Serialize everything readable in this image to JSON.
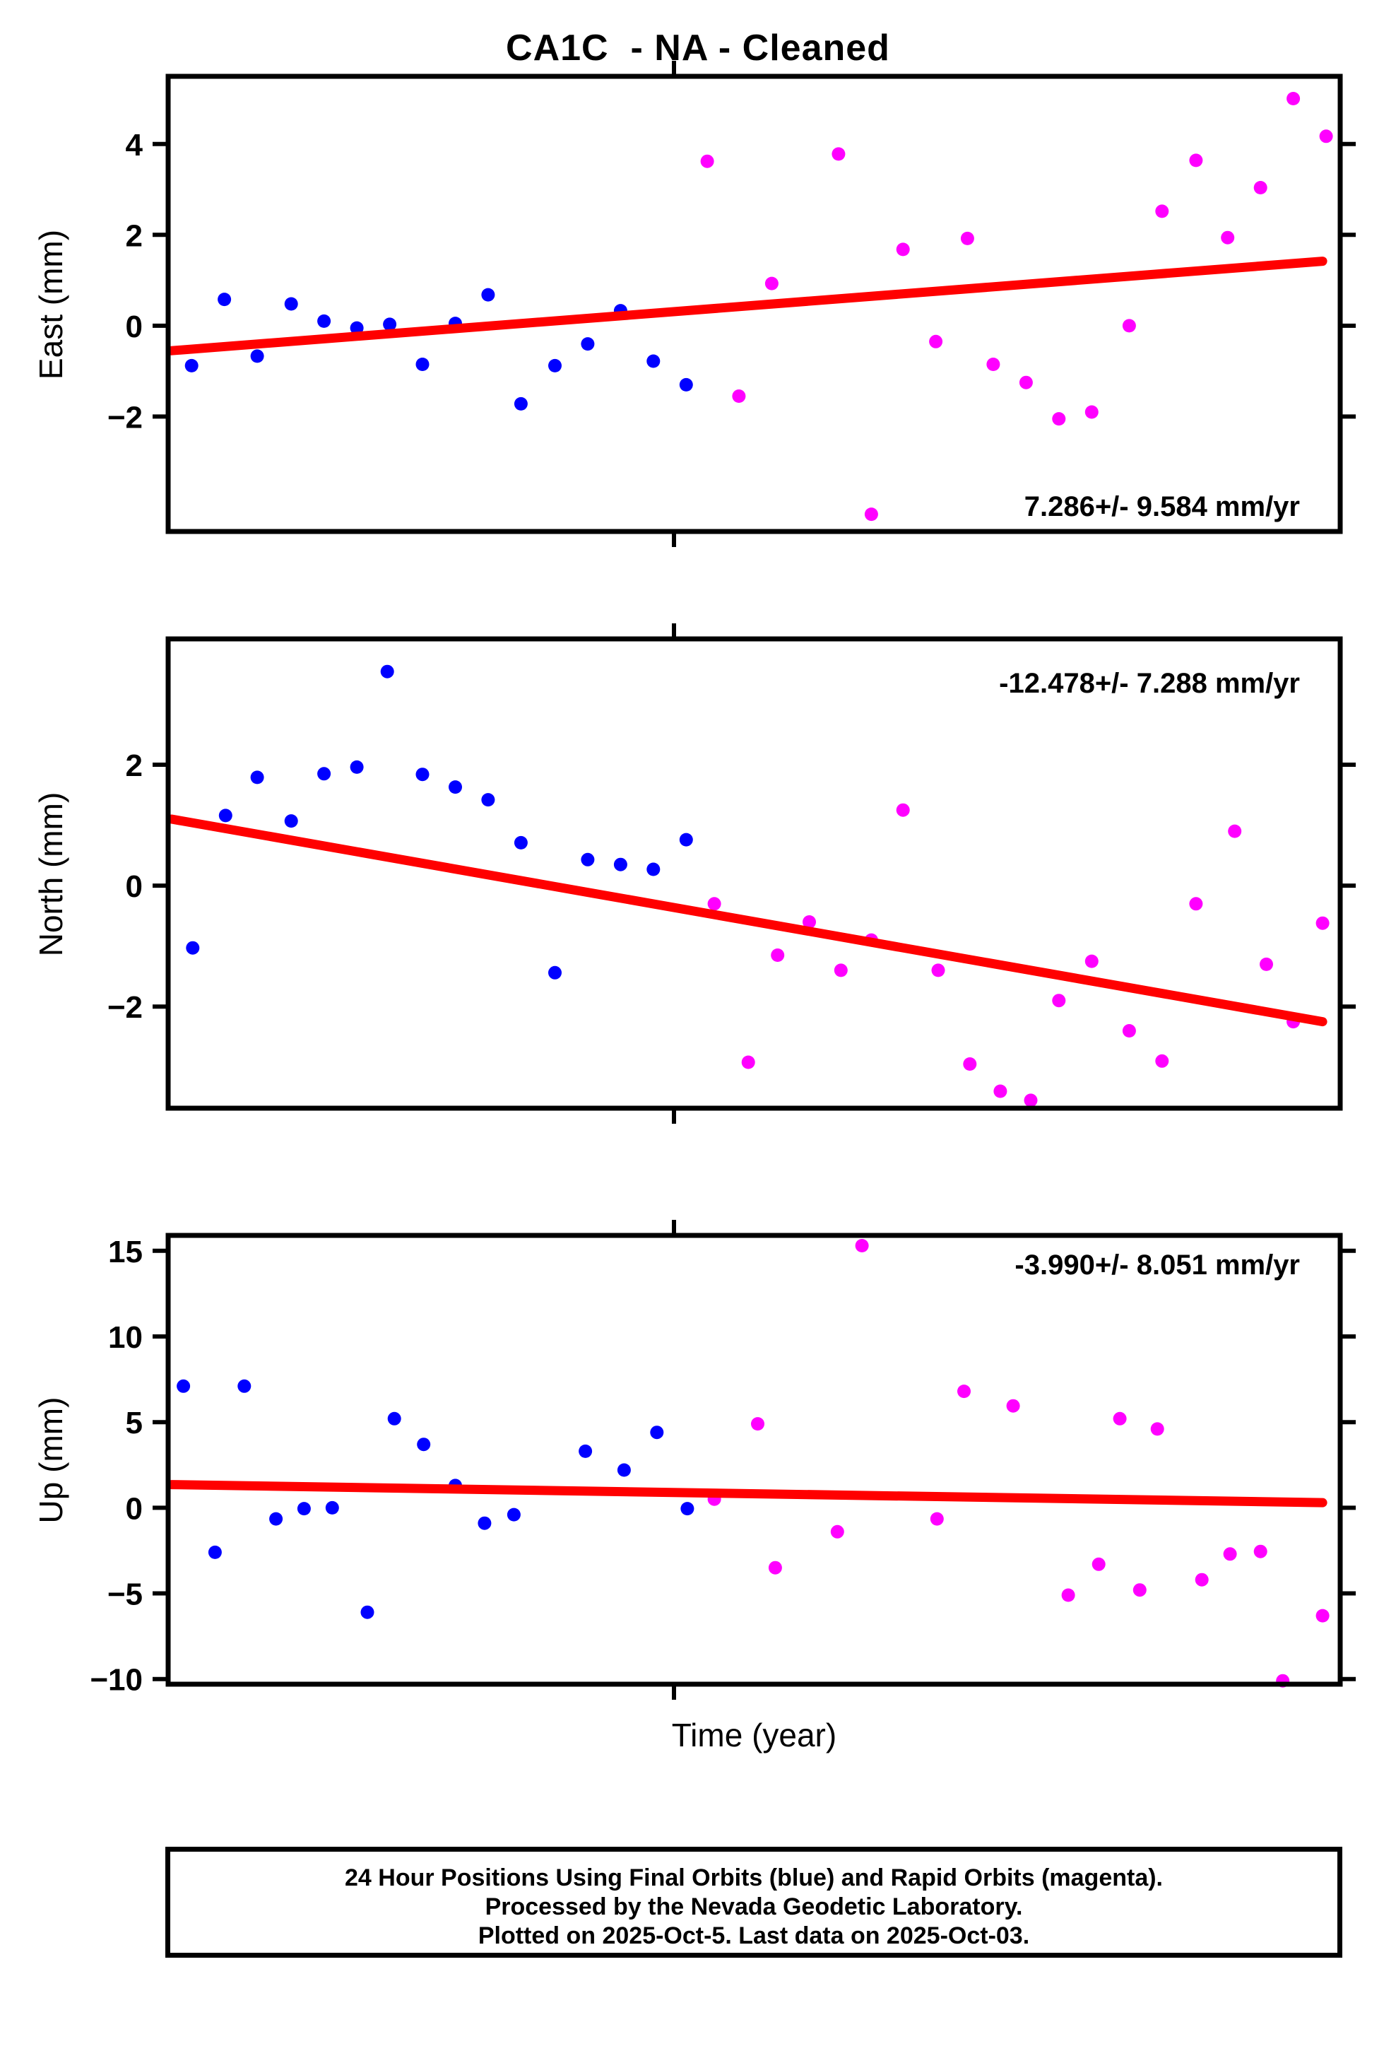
{
  "title": "CA1C  - NA - Cleaned",
  "xlabel": "Time (year)",
  "colors": {
    "final_blue": "#0000ff",
    "rapid_magenta": "#ff00ff",
    "trend_red": "#ff0000",
    "axis_black": "#000000"
  },
  "footer": {
    "lines": [
      "24 Hour Positions Using Final Orbits (blue) and Rapid Orbits (magenta).",
      "Processed by the Nevada Geodetic Laboratory.",
      "Plotted on 2025-Oct-5. Last data on 2025-Oct-03."
    ]
  },
  "chart_data": [
    {
      "name": "east",
      "type": "scatter",
      "ylabel": "East (mm)",
      "rate_label": "7.286+/- 9.584 mm/yr",
      "rate_label_position": "bottom-right",
      "ylim": [
        -4.53,
        5.49
      ],
      "yticks": [
        {
          "value": 4,
          "label": "4"
        },
        {
          "value": 2,
          "label": "2"
        },
        {
          "value": 0,
          "label": "0"
        },
        {
          "value": -2,
          "label": "−2"
        }
      ],
      "xtick_fractions": [
        0.4316
      ],
      "x_axis_note": "x values are fractional positions along the unlabeled time axis",
      "series": [
        {
          "name": "final-orbits",
          "color_key": "final_blue",
          "points": [
            [
              0.02,
              -0.88
            ],
            [
              0.048,
              0.58
            ],
            [
              0.076,
              -0.67
            ],
            [
              0.105,
              0.48
            ],
            [
              0.133,
              0.1
            ],
            [
              0.161,
              -0.05
            ],
            [
              0.189,
              0.03
            ],
            [
              0.217,
              -0.85
            ],
            [
              0.245,
              0.05
            ],
            [
              0.273,
              0.68
            ],
            [
              0.301,
              -1.72
            ],
            [
              0.33,
              -0.88
            ],
            [
              0.358,
              -0.4
            ],
            [
              0.386,
              0.33
            ],
            [
              0.414,
              -0.78
            ],
            [
              0.442,
              -1.3
            ]
          ]
        },
        {
          "name": "rapid-orbits",
          "color_key": "rapid_magenta",
          "points": [
            [
              0.46,
              3.62
            ],
            [
              0.487,
              -1.55
            ],
            [
              0.515,
              0.93
            ],
            [
              0.572,
              3.78
            ],
            [
              0.6,
              -4.15
            ],
            [
              0.627,
              1.68
            ],
            [
              0.655,
              -0.35
            ],
            [
              0.682,
              1.92
            ],
            [
              0.704,
              -0.85
            ],
            [
              0.732,
              -1.25
            ],
            [
              0.76,
              -2.05
            ],
            [
              0.788,
              -1.9
            ],
            [
              0.82,
              0.0
            ],
            [
              0.848,
              2.52
            ],
            [
              0.877,
              3.64
            ],
            [
              0.904,
              1.94
            ],
            [
              0.932,
              3.04
            ],
            [
              0.96,
              5.0
            ],
            [
              0.988,
              4.17
            ]
          ]
        }
      ],
      "trend": {
        "rate_mm_yr": 7.286,
        "x": [
          0.003,
          0.985
        ],
        "y": [
          -0.55,
          1.42
        ]
      }
    },
    {
      "name": "north",
      "type": "scatter",
      "ylabel": "North (mm)",
      "rate_label": "-12.478+/- 7.288 mm/yr",
      "rate_label_position": "top-right",
      "ylim": [
        -3.68,
        4.08
      ],
      "yticks": [
        {
          "value": 2,
          "label": "2"
        },
        {
          "value": 0,
          "label": "0"
        },
        {
          "value": -2,
          "label": "−2"
        }
      ],
      "xtick_fractions": [
        0.4316
      ],
      "x_axis_note": "x values are fractional positions along the unlabeled time axis",
      "series": [
        {
          "name": "final-orbits",
          "color_key": "final_blue",
          "points": [
            [
              0.021,
              -1.03
            ],
            [
              0.049,
              1.16
            ],
            [
              0.076,
              1.79
            ],
            [
              0.105,
              1.07
            ],
            [
              0.133,
              1.85
            ],
            [
              0.161,
              1.96
            ],
            [
              0.187,
              3.54
            ],
            [
              0.217,
              1.84
            ],
            [
              0.245,
              1.63
            ],
            [
              0.273,
              1.42
            ],
            [
              0.301,
              0.71
            ],
            [
              0.33,
              -1.44
            ],
            [
              0.358,
              0.43
            ],
            [
              0.386,
              0.35
            ],
            [
              0.414,
              0.27
            ],
            [
              0.442,
              0.76
            ]
          ]
        },
        {
          "name": "rapid-orbits",
          "color_key": "rapid_magenta",
          "points": [
            [
              0.466,
              -0.3
            ],
            [
              0.495,
              -2.92
            ],
            [
              0.52,
              -1.15
            ],
            [
              0.547,
              -0.6
            ],
            [
              0.574,
              -1.4
            ],
            [
              0.6,
              -0.9
            ],
            [
              0.627,
              1.25
            ],
            [
              0.657,
              -1.4
            ],
            [
              0.684,
              -2.95
            ],
            [
              0.71,
              -3.4
            ],
            [
              0.736,
              -3.55
            ],
            [
              0.76,
              -1.9
            ],
            [
              0.788,
              -1.25
            ],
            [
              0.82,
              -2.4
            ],
            [
              0.848,
              -2.9
            ],
            [
              0.877,
              -0.3
            ],
            [
              0.91,
              0.9
            ],
            [
              0.937,
              -1.3
            ],
            [
              0.96,
              -2.25
            ],
            [
              0.985,
              -0.62
            ]
          ]
        }
      ],
      "trend": {
        "rate_mm_yr": -12.478,
        "x": [
          0.003,
          0.985
        ],
        "y": [
          1.1,
          -2.25
        ]
      }
    },
    {
      "name": "up",
      "type": "scatter",
      "ylabel": "Up (mm)",
      "rate_label": "-3.990+/- 8.051 mm/yr",
      "rate_label_position": "top-right",
      "ylim": [
        -10.3,
        15.9
      ],
      "yticks": [
        {
          "value": 15,
          "label": "15"
        },
        {
          "value": 10,
          "label": "10"
        },
        {
          "value": 5,
          "label": "5"
        },
        {
          "value": 0,
          "label": "0"
        },
        {
          "value": -5,
          "label": "−5"
        },
        {
          "value": -10,
          "label": "−10"
        }
      ],
      "xtick_fractions": [
        0.4316
      ],
      "x_axis_note": "x values are fractional positions along the unlabeled time axis",
      "series": [
        {
          "name": "final-orbits",
          "color_key": "final_blue",
          "points": [
            [
              0.013,
              7.1
            ],
            [
              0.04,
              -2.6
            ],
            [
              0.065,
              7.1
            ],
            [
              0.092,
              -0.65
            ],
            [
              0.116,
              -0.05
            ],
            [
              0.14,
              0.0
            ],
            [
              0.17,
              -6.1
            ],
            [
              0.193,
              5.2
            ],
            [
              0.218,
              3.7
            ],
            [
              0.245,
              1.3
            ],
            [
              0.27,
              -0.9
            ],
            [
              0.295,
              -0.4
            ],
            [
              0.356,
              3.3
            ],
            [
              0.389,
              2.2
            ],
            [
              0.417,
              4.4
            ],
            [
              0.443,
              -0.05
            ]
          ]
        },
        {
          "name": "rapid-orbits",
          "color_key": "rapid_magenta",
          "points": [
            [
              0.466,
              0.5
            ],
            [
              0.503,
              4.9
            ],
            [
              0.518,
              -3.5
            ],
            [
              0.571,
              -1.4
            ],
            [
              0.592,
              15.3
            ],
            [
              0.656,
              -0.65
            ],
            [
              0.679,
              6.8
            ],
            [
              0.721,
              5.95
            ],
            [
              0.768,
              -5.1
            ],
            [
              0.794,
              -3.3
            ],
            [
              0.812,
              5.2
            ],
            [
              0.829,
              -4.8
            ],
            [
              0.844,
              4.6
            ],
            [
              0.882,
              -4.2
            ],
            [
              0.906,
              -2.7
            ],
            [
              0.932,
              -2.55
            ],
            [
              0.951,
              -10.1
            ],
            [
              0.985,
              -6.3
            ]
          ]
        }
      ],
      "trend": {
        "rate_mm_yr": -3.99,
        "x": [
          0.003,
          0.985
        ],
        "y": [
          1.35,
          0.3
        ]
      }
    }
  ]
}
